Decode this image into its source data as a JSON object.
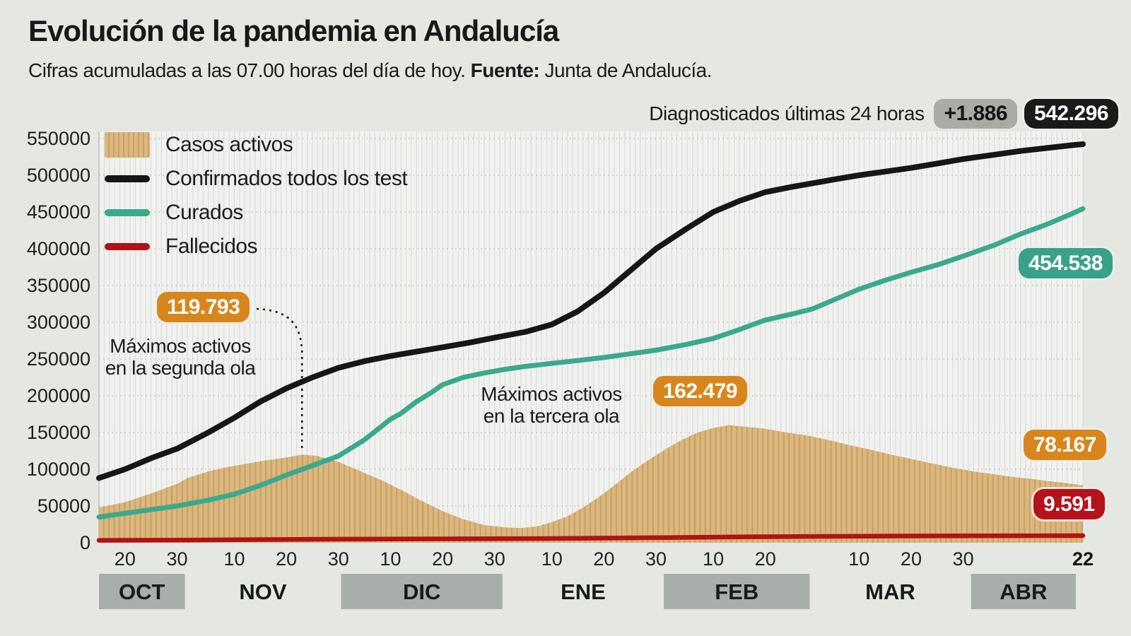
{
  "header": {
    "title": "Evolución de la pandemia en Andalucía",
    "subtitle": "Cifras acumuladas a las 07.00 horas del día de hoy.",
    "source_label": "Fuente:",
    "source_value": "Junta de Andalucía.",
    "diagnosed_label": "Diagnosticados últimas 24 horas",
    "diagnosed_delta": "+1.886",
    "diagnosed_total": "542.296"
  },
  "legend": {
    "items": [
      {
        "label": "Casos activos",
        "type": "area"
      },
      {
        "label": "Confirmados todos los test",
        "type": "line"
      },
      {
        "label": "Curados",
        "type": "line"
      },
      {
        "label": "Fallecidos",
        "type": "line"
      }
    ]
  },
  "annotations": {
    "second_wave": {
      "value": "119.793",
      "line1": "Máximos activos",
      "line2": "en la segunda ola",
      "anchor_day": 39
    },
    "third_wave": {
      "value": "162.479",
      "line1": "Máximos activos",
      "line2": "en la tercera ola"
    },
    "cured_end": {
      "value": "454.538"
    },
    "active_end": {
      "value": "78.167"
    },
    "deaths_end": {
      "value": "9.591"
    }
  },
  "colors": {
    "background": "#e4e7e2",
    "plot_bg": "#f1f2ef",
    "stripe": "#d8dbd7",
    "grid": "#b9bdb9",
    "axis_text": "#1e1e1e",
    "active_fill": "#dcb77e",
    "active_stripe": "#c7a166",
    "confirmed": "#161616",
    "cured": "#3aa98c",
    "deaths": "#b01217",
    "orange_badge": "#d8861c",
    "green_badge": "#37a287",
    "red_badge": "#b5121b",
    "black_badge": "#1a1a1a",
    "gray_badge": "#a8aba6",
    "month_band": "#a8afab"
  },
  "chart_data": {
    "type": "area+line",
    "x_unit": "days since 2020-10-15",
    "days_total": 189,
    "ylim": [
      0,
      550000
    ],
    "y_tick_step": 50000,
    "y_ticks": [
      0,
      50000,
      100000,
      150000,
      200000,
      250000,
      300000,
      350000,
      400000,
      450000,
      500000,
      550000
    ],
    "day_ticks": [
      {
        "day": 5,
        "label": "20"
      },
      {
        "day": 15,
        "label": "30"
      },
      {
        "day": 26,
        "label": "10"
      },
      {
        "day": 36,
        "label": "20"
      },
      {
        "day": 46,
        "label": "30"
      },
      {
        "day": 56,
        "label": "10"
      },
      {
        "day": 66,
        "label": "20"
      },
      {
        "day": 76,
        "label": "30"
      },
      {
        "day": 87,
        "label": "10"
      },
      {
        "day": 97,
        "label": "20"
      },
      {
        "day": 107,
        "label": "30"
      },
      {
        "day": 118,
        "label": "10"
      },
      {
        "day": 128,
        "label": "20"
      },
      {
        "day": 146,
        "label": "10"
      },
      {
        "day": 156,
        "label": "20"
      },
      {
        "day": 166,
        "label": "30"
      },
      {
        "day": 189,
        "label": "22",
        "bold": true
      }
    ],
    "months": [
      {
        "label": "OCT",
        "start": 0,
        "end": 16.5,
        "band": true
      },
      {
        "label": "NOV",
        "start": 16.5,
        "end": 46.5,
        "band": false
      },
      {
        "label": "DIC",
        "start": 46.5,
        "end": 77.5,
        "band": true
      },
      {
        "label": "ENE",
        "start": 77.5,
        "end": 108.5,
        "band": false
      },
      {
        "label": "FEB",
        "start": 108.5,
        "end": 136.5,
        "band": true
      },
      {
        "label": "MAR",
        "start": 136.5,
        "end": 167.5,
        "band": false
      },
      {
        "label": "ABR",
        "start": 167.5,
        "end": 189,
        "band": true
      }
    ],
    "series": [
      {
        "name": "Casos activos",
        "kind": "area",
        "max_label": 119793,
        "end_value": 78167,
        "points": [
          [
            0,
            48000
          ],
          [
            5,
            55000
          ],
          [
            10,
            67000
          ],
          [
            15,
            80000
          ],
          [
            17,
            88000
          ],
          [
            21,
            97000
          ],
          [
            24,
            102000
          ],
          [
            28,
            107000
          ],
          [
            32,
            112000
          ],
          [
            36,
            116000
          ],
          [
            39,
            119793
          ],
          [
            42,
            118000
          ],
          [
            46,
            110000
          ],
          [
            50,
            98000
          ],
          [
            54,
            86000
          ],
          [
            58,
            72000
          ],
          [
            62,
            57000
          ],
          [
            66,
            43000
          ],
          [
            70,
            32000
          ],
          [
            74,
            24000
          ],
          [
            78,
            21000
          ],
          [
            81,
            20000
          ],
          [
            84,
            22000
          ],
          [
            87,
            28000
          ],
          [
            90,
            36000
          ],
          [
            93,
            48000
          ],
          [
            96,
            62000
          ],
          [
            99,
            78000
          ],
          [
            102,
            95000
          ],
          [
            105,
            110000
          ],
          [
            109,
            128000
          ],
          [
            112,
            140000
          ],
          [
            115,
            150000
          ],
          [
            118,
            156000
          ],
          [
            121,
            160000
          ],
          [
            124,
            158000
          ],
          [
            128,
            155000
          ],
          [
            132,
            150000
          ],
          [
            136,
            146000
          ],
          [
            140,
            140000
          ],
          [
            144,
            133000
          ],
          [
            148,
            127000
          ],
          [
            152,
            120000
          ],
          [
            156,
            114000
          ],
          [
            160,
            108000
          ],
          [
            164,
            102000
          ],
          [
            168,
            97000
          ],
          [
            172,
            93000
          ],
          [
            175,
            90000
          ],
          [
            179,
            87000
          ],
          [
            182,
            84000
          ],
          [
            185,
            82000
          ],
          [
            187,
            80000
          ],
          [
            189,
            78167
          ]
        ]
      },
      {
        "name": "Confirmados todos los test",
        "kind": "line",
        "end_value": 542296,
        "points": [
          [
            0,
            88000
          ],
          [
            5,
            100000
          ],
          [
            10,
            115000
          ],
          [
            15,
            128000
          ],
          [
            21,
            150000
          ],
          [
            26,
            170000
          ],
          [
            31,
            192000
          ],
          [
            36,
            210000
          ],
          [
            41,
            225000
          ],
          [
            46,
            238000
          ],
          [
            51,
            247000
          ],
          [
            56,
            254000
          ],
          [
            61,
            260000
          ],
          [
            66,
            266000
          ],
          [
            71,
            272000
          ],
          [
            76,
            279000
          ],
          [
            82,
            287000
          ],
          [
            87,
            297000
          ],
          [
            92,
            315000
          ],
          [
            97,
            340000
          ],
          [
            102,
            370000
          ],
          [
            107,
            400000
          ],
          [
            113,
            428000
          ],
          [
            118,
            450000
          ],
          [
            123,
            465000
          ],
          [
            128,
            477000
          ],
          [
            133,
            484000
          ],
          [
            137,
            489000
          ],
          [
            141,
            494000
          ],
          [
            146,
            500000
          ],
          [
            151,
            505000
          ],
          [
            156,
            510000
          ],
          [
            161,
            516000
          ],
          [
            166,
            522000
          ],
          [
            172,
            528000
          ],
          [
            177,
            533000
          ],
          [
            182,
            537000
          ],
          [
            187,
            541000
          ],
          [
            189,
            542296
          ]
        ]
      },
      {
        "name": "Curados",
        "kind": "line",
        "end_value": 454538,
        "points": [
          [
            0,
            35000
          ],
          [
            5,
            40000
          ],
          [
            10,
            45000
          ],
          [
            15,
            50000
          ],
          [
            21,
            58000
          ],
          [
            26,
            66000
          ],
          [
            31,
            78000
          ],
          [
            36,
            92000
          ],
          [
            41,
            105000
          ],
          [
            46,
            118000
          ],
          [
            51,
            140000
          ],
          [
            56,
            168000
          ],
          [
            58,
            176000
          ],
          [
            61,
            192000
          ],
          [
            64,
            205000
          ],
          [
            66,
            215000
          ],
          [
            70,
            225000
          ],
          [
            74,
            231000
          ],
          [
            78,
            236000
          ],
          [
            82,
            240000
          ],
          [
            87,
            244000
          ],
          [
            92,
            248000
          ],
          [
            97,
            252000
          ],
          [
            102,
            257000
          ],
          [
            107,
            262000
          ],
          [
            113,
            270000
          ],
          [
            118,
            278000
          ],
          [
            123,
            290000
          ],
          [
            128,
            303000
          ],
          [
            133,
            311000
          ],
          [
            137,
            318000
          ],
          [
            141,
            330000
          ],
          [
            146,
            345000
          ],
          [
            151,
            357000
          ],
          [
            156,
            368000
          ],
          [
            161,
            378000
          ],
          [
            166,
            390000
          ],
          [
            172,
            405000
          ],
          [
            177,
            420000
          ],
          [
            182,
            433000
          ],
          [
            187,
            448000
          ],
          [
            189,
            454538
          ]
        ]
      },
      {
        "name": "Fallecidos",
        "kind": "line",
        "end_value": 9591,
        "points": [
          [
            0,
            3300
          ],
          [
            17,
            3700
          ],
          [
            32,
            4300
          ],
          [
            47,
            4900
          ],
          [
            61,
            5200
          ],
          [
            78,
            5500
          ],
          [
            92,
            6000
          ],
          [
            109,
            7000
          ],
          [
            123,
            7900
          ],
          [
            137,
            8600
          ],
          [
            151,
            9000
          ],
          [
            168,
            9300
          ],
          [
            189,
            9591
          ]
        ]
      }
    ]
  }
}
